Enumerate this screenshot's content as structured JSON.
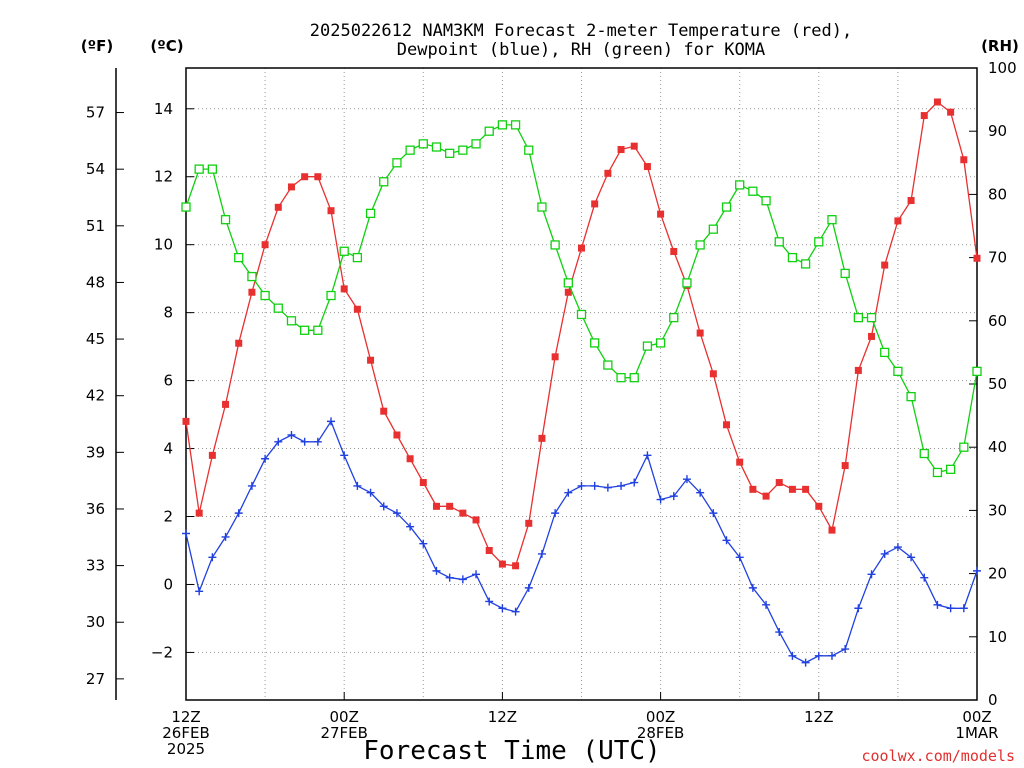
{
  "colors": {
    "temperature": "#e83030",
    "dewpoint": "#2040e0",
    "rh": "#10d010",
    "grid": "#999999"
  },
  "chart_data": {
    "type": "line",
    "title": [
      "2025022612 NAM3KM Forecast 2-meter Temperature (red),",
      "Dewpoint (blue), RH (green) for KOMA"
    ],
    "xlabel": "Forecast Time (UTC)",
    "credit": "coolwx.com/models",
    "units": {
      "fahrenheit": "(ºF)",
      "celsius": "(ºC)",
      "rh": "(RH)"
    },
    "x_unit": "forecast hour from 2025-02-26 12Z",
    "xlim": [
      0,
      60
    ],
    "x_ticks": [
      {
        "x": 0,
        "lines": [
          "12Z",
          "26FEB",
          "2025"
        ]
      },
      {
        "x": 12,
        "lines": [
          "00Z",
          "27FEB"
        ]
      },
      {
        "x": 24,
        "lines": [
          "12Z"
        ]
      },
      {
        "x": 36,
        "lines": [
          "00Z",
          "28FEB"
        ]
      },
      {
        "x": 48,
        "lines": [
          "12Z"
        ]
      },
      {
        "x": 60,
        "lines": [
          "00Z",
          "1MAR"
        ]
      }
    ],
    "ylim_celsius": [
      -3.4,
      15.2
    ],
    "yticks_celsius": [
      "-2",
      "0",
      "2",
      "4",
      "6",
      "8",
      "10",
      "12",
      "14"
    ],
    "ylim_fahrenheit": [
      25.88,
      59.36
    ],
    "yticks_fahrenheit": [
      "27",
      "30",
      "33",
      "36",
      "39",
      "42",
      "45",
      "48",
      "51",
      "54",
      "57"
    ],
    "ylim_rh": [
      0,
      100
    ],
    "yticks_rh": [
      "0",
      "10",
      "20",
      "30",
      "40",
      "50",
      "60",
      "70",
      "80",
      "90",
      "100"
    ],
    "grid": true,
    "x_hours": [
      0,
      1,
      2,
      3,
      4,
      5,
      6,
      7,
      8,
      9,
      10,
      11,
      12,
      13,
      14,
      15,
      16,
      17,
      18,
      19,
      20,
      21,
      22,
      23,
      24,
      25,
      26,
      27,
      28,
      29,
      30,
      31,
      32,
      33,
      34,
      35,
      36,
      37,
      38,
      39,
      40,
      41,
      42,
      43,
      44,
      45,
      46,
      47,
      48,
      49,
      50,
      51,
      52,
      53,
      54,
      55,
      56,
      57,
      58,
      59,
      60
    ],
    "series": [
      {
        "name": "Temperature",
        "axis": "celsius",
        "marker": "filled-square",
        "color_key": "temperature",
        "values": [
          4.8,
          2.1,
          3.8,
          5.3,
          7.1,
          8.6,
          10.0,
          11.1,
          11.7,
          12.0,
          12.0,
          11.0,
          8.7,
          8.1,
          6.6,
          5.1,
          4.4,
          3.7,
          3.0,
          2.3,
          2.3,
          2.1,
          1.9,
          1.0,
          0.6,
          0.55,
          1.8,
          4.3,
          6.7,
          8.6,
          9.9,
          11.2,
          12.1,
          12.8,
          12.9,
          12.3,
          10.9,
          9.8,
          8.8,
          7.4,
          6.2,
          4.7,
          3.6,
          2.8,
          2.6,
          3.0,
          2.8,
          2.8,
          2.3,
          1.6,
          3.5,
          6.3,
          7.3,
          9.4,
          10.7,
          11.3,
          13.8,
          14.2,
          13.9,
          12.5,
          9.6
        ]
      },
      {
        "name": "Dewpoint",
        "axis": "celsius",
        "marker": "plus",
        "color_key": "dewpoint",
        "values": [
          1.5,
          -0.2,
          0.8,
          1.4,
          2.1,
          2.9,
          3.7,
          4.2,
          4.4,
          4.2,
          4.2,
          4.8,
          3.8,
          2.9,
          2.7,
          2.3,
          2.1,
          1.7,
          1.2,
          0.4,
          0.2,
          0.15,
          0.3,
          -0.5,
          -0.7,
          -0.8,
          -0.1,
          0.9,
          2.1,
          2.7,
          2.9,
          2.9,
          2.85,
          2.9,
          3.0,
          3.8,
          2.5,
          2.6,
          3.1,
          2.7,
          2.1,
          1.3,
          0.8,
          -0.1,
          -0.6,
          -1.4,
          -2.1,
          -2.3,
          -2.1,
          -2.1,
          -1.9,
          -0.7,
          0.3,
          0.9,
          1.1,
          0.8,
          0.2,
          -0.6,
          -0.7,
          -0.7,
          0.4
        ]
      },
      {
        "name": "RH",
        "axis": "rh",
        "marker": "open-square",
        "color_key": "rh",
        "values": [
          78,
          84,
          84,
          76,
          70,
          67,
          64,
          62,
          60,
          58.5,
          58.5,
          64,
          71,
          70,
          77,
          82,
          85,
          87,
          88,
          87.5,
          86.5,
          87,
          88,
          90,
          91,
          91,
          87,
          78,
          72,
          66,
          61,
          56.5,
          53,
          51,
          51,
          56,
          56.5,
          60.5,
          66,
          72,
          74.5,
          78,
          81.5,
          80.5,
          79,
          72.5,
          70,
          69,
          72.5,
          76,
          67.5,
          60.5,
          60.5,
          55,
          52,
          48,
          39,
          36,
          36.5,
          40,
          52
        ]
      }
    ]
  }
}
